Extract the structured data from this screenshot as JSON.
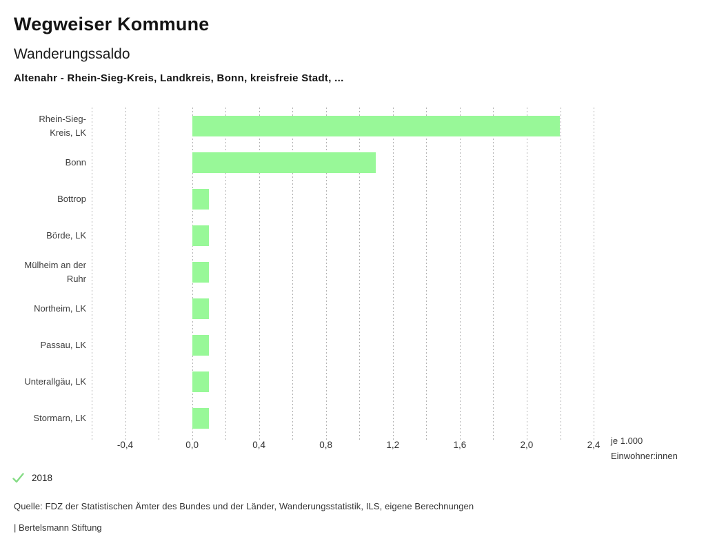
{
  "header": {
    "title": "Wegweiser Kommune",
    "subtitle": "Wanderungssaldo",
    "description": "Altenahr - Rhein-Sieg-Kreis, Landkreis, Bonn, kreisfreie Stadt, ..."
  },
  "chart_data": {
    "type": "bar",
    "orientation": "horizontal",
    "title": "Wanderungssaldo",
    "categories": [
      "Rhein-Sieg-Kreis, LK",
      "Bonn",
      "Bottrop",
      "Börde, LK",
      "Mülheim an der Ruhr",
      "Northeim, LK",
      "Passau, LK",
      "Unterallgäu, LK",
      "Stormarn, LK"
    ],
    "series": [
      {
        "name": "2018",
        "values": [
          2.2,
          1.1,
          0.1,
          0.1,
          0.1,
          0.1,
          0.1,
          0.1,
          0.1
        ]
      }
    ],
    "xlabel": "je 1.000 Einwohner:innen",
    "unit_label_line1": "je 1.000",
    "unit_label_line2": "Einwohner:innen",
    "xlim": [
      -0.6,
      2.4
    ],
    "grid": true,
    "grid_step": 0.2,
    "x_tick_values": [
      -0.4,
      0.0,
      0.4,
      0.8,
      1.2,
      1.6,
      2.0,
      2.4
    ],
    "x_tick_labels": [
      "-0,4",
      "0,0",
      "0,4",
      "0,8",
      "1,2",
      "1,6",
      "2,0",
      "2,4"
    ],
    "bar_color": "#98f898",
    "legend_position": "bottom-left"
  },
  "legend": {
    "items": [
      {
        "label": "2018",
        "symbol": "check-icon",
        "color": "#85dc85"
      }
    ]
  },
  "footer": {
    "source": "Quelle: FDZ der Statistischen Ämter des Bundes und der Länder, Wanderungsstatistik, ILS, eigene Berechnungen",
    "branding": "| Bertelsmann Stiftung"
  }
}
